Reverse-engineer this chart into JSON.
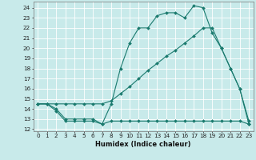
{
  "xlabel": "Humidex (Indice chaleur)",
  "bg_color": "#c8eaea",
  "line_color": "#1a7a6e",
  "grid_color": "#ffffff",
  "xlim": [
    -0.5,
    23.5
  ],
  "ylim": [
    11.8,
    24.6
  ],
  "yticks": [
    12,
    13,
    14,
    15,
    16,
    17,
    18,
    19,
    20,
    21,
    22,
    23,
    24
  ],
  "xticks": [
    0,
    1,
    2,
    3,
    4,
    5,
    6,
    7,
    8,
    9,
    10,
    11,
    12,
    13,
    14,
    15,
    16,
    17,
    18,
    19,
    20,
    21,
    22,
    23
  ],
  "line1_x": [
    0,
    1,
    2,
    3,
    4,
    5,
    6,
    7,
    8,
    9,
    10,
    11,
    12,
    13,
    14,
    15,
    16,
    17,
    18,
    19,
    20,
    21,
    22,
    23
  ],
  "line1_y": [
    14.5,
    14.5,
    13.8,
    12.8,
    12.8,
    12.8,
    12.8,
    12.5,
    12.8,
    12.8,
    12.8,
    12.8,
    12.8,
    12.8,
    12.8,
    12.8,
    12.8,
    12.8,
    12.8,
    12.8,
    12.8,
    12.8,
    12.8,
    12.5
  ],
  "line2_x": [
    0,
    1,
    2,
    3,
    4,
    5,
    6,
    7,
    8,
    9,
    10,
    11,
    12,
    13,
    14,
    15,
    16,
    17,
    18,
    19,
    20,
    21,
    22,
    23
  ],
  "line2_y": [
    14.5,
    14.5,
    14.5,
    14.5,
    14.5,
    14.5,
    14.5,
    14.5,
    14.8,
    15.5,
    16.2,
    17.0,
    17.8,
    18.5,
    19.2,
    19.8,
    20.5,
    21.2,
    22.0,
    22.0,
    20.0,
    18.0,
    16.0,
    12.5
  ],
  "line3_x": [
    0,
    1,
    2,
    3,
    4,
    5,
    6,
    7,
    8,
    9,
    10,
    11,
    12,
    13,
    14,
    15,
    16,
    17,
    18,
    19,
    20,
    21,
    22,
    23
  ],
  "line3_y": [
    14.5,
    14.5,
    14.0,
    13.0,
    13.0,
    13.0,
    13.0,
    12.5,
    14.5,
    18.0,
    20.5,
    22.0,
    22.0,
    23.2,
    23.5,
    23.5,
    23.0,
    24.2,
    24.0,
    21.5,
    20.0,
    18.0,
    16.0,
    12.8
  ],
  "marker": "D",
  "markersize": 2.0,
  "linewidth": 0.8,
  "tick_fontsize": 5.2,
  "xlabel_fontsize": 6.0
}
